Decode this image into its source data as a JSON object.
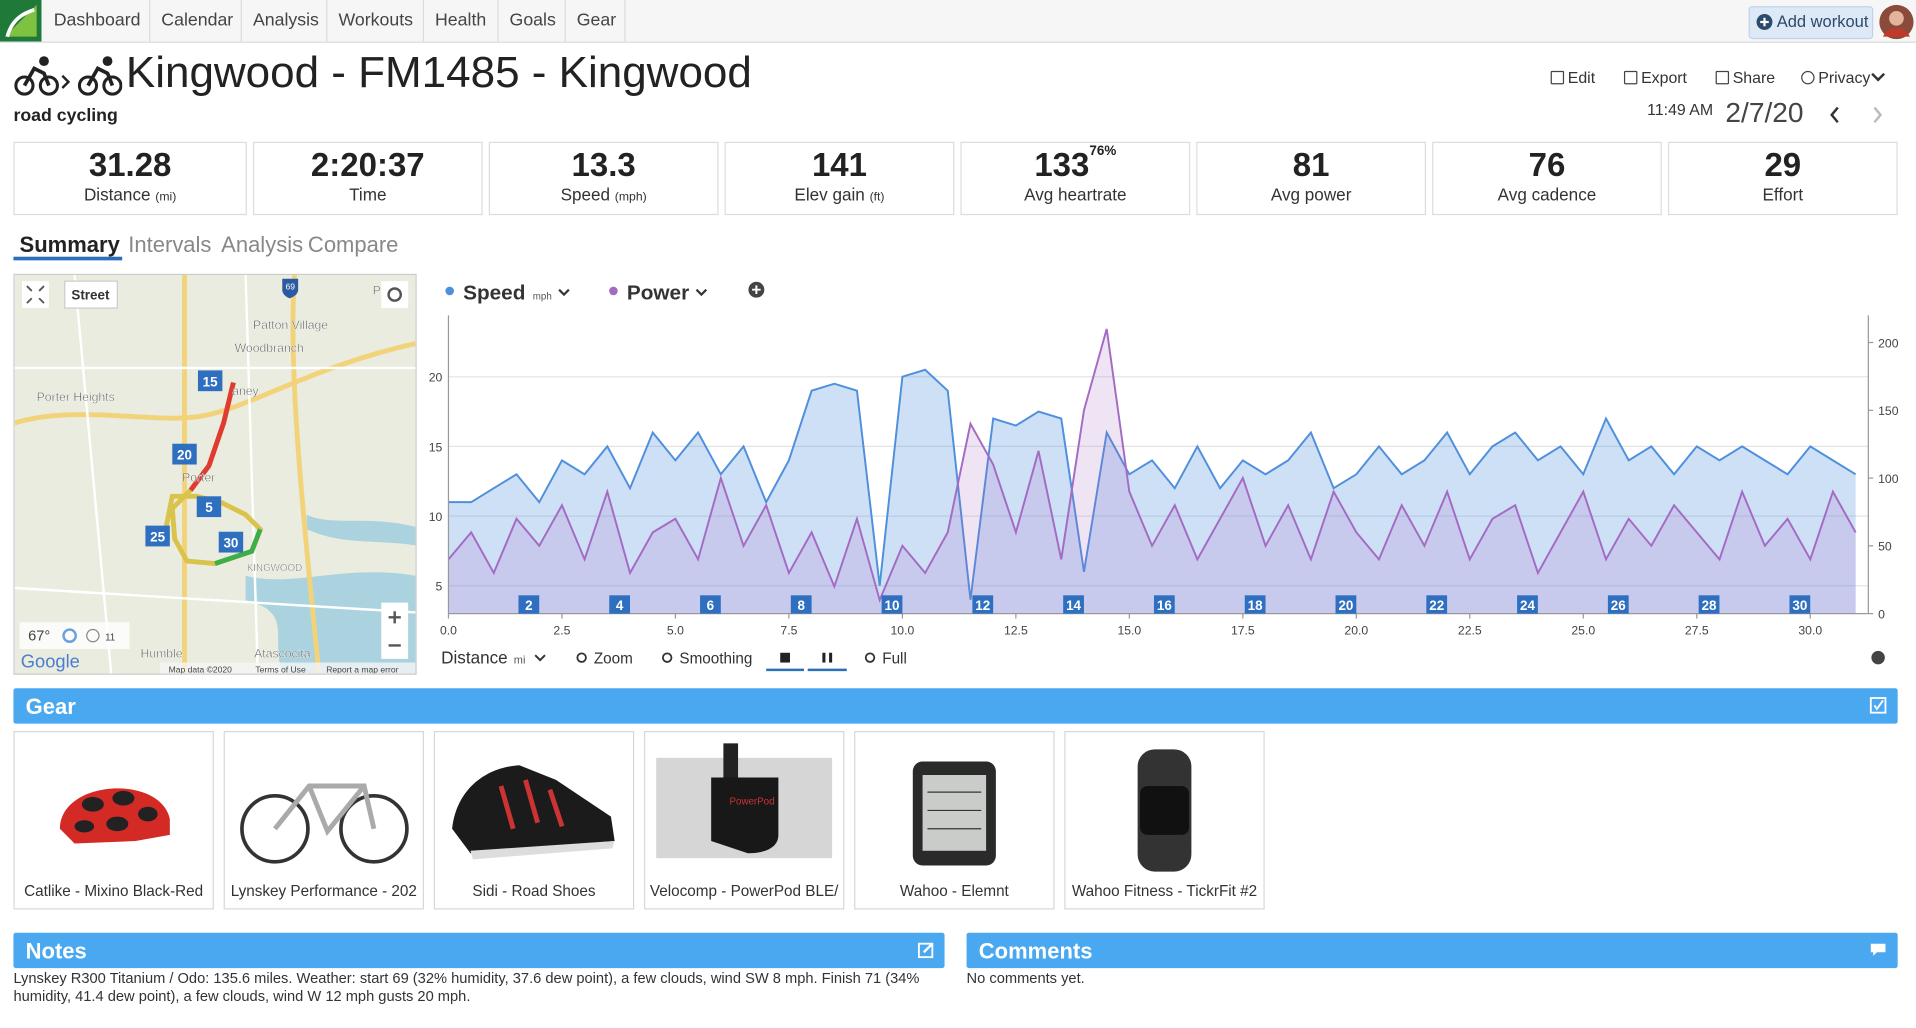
{
  "nav": {
    "items": [
      "Dashboard",
      "Calendar",
      "Analysis",
      "Workouts",
      "Health",
      "Goals",
      "Gear"
    ],
    "add_workout": "Add workout"
  },
  "header": {
    "title": "Kingwood - FM1485 - Kingwood",
    "type": "road cycling",
    "actions": [
      "Edit",
      "Export",
      "Share",
      "Privacy"
    ],
    "time": "11:49 AM",
    "date": "2/7/20"
  },
  "stats": [
    {
      "value": 31.28,
      "label": "Distance",
      "unit": "(mi)"
    },
    {
      "value": "2:20:37",
      "label": "Time"
    },
    {
      "value": 13.3,
      "label": "Speed",
      "unit": "(mph)"
    },
    {
      "value": 141,
      "label": "Elev gain",
      "unit": "(ft)"
    },
    {
      "value": 133,
      "label": "Avg heartrate",
      "extra": "76%"
    },
    {
      "value": 81,
      "label": "Avg power"
    },
    {
      "value": 76,
      "label": "Avg cadence"
    },
    {
      "value": 29,
      "label": "Effort"
    }
  ],
  "tabs": [
    "Summary",
    "Intervals",
    "Analysis",
    "Compare"
  ],
  "map": {
    "street": "Street",
    "shield": "69",
    "labels": [
      "Patton Village",
      "Woodbranch",
      "Porter Heights",
      "Porter",
      "KINGWOOD",
      "Humble",
      "Atascocita",
      "aney",
      "P"
    ],
    "markers": [
      15,
      20,
      5,
      25,
      30
    ],
    "temp": "67°",
    "wind": "11",
    "google": "Google",
    "footer": [
      "Map data ©2020",
      "Terms of Use",
      "Report a map error"
    ]
  },
  "chart_data": {
    "type": "line",
    "x": [
      0,
      0.5,
      1,
      1.5,
      2,
      2.5,
      3,
      3.5,
      4,
      4.5,
      5,
      5.5,
      6,
      6.5,
      7,
      7.5,
      8,
      8.5,
      9,
      9.5,
      10,
      10.5,
      11,
      11.5,
      12,
      12.5,
      13,
      13.5,
      14,
      14.5,
      15,
      15.5,
      16,
      16.5,
      17,
      17.5,
      18,
      18.5,
      19,
      19.5,
      20,
      20.5,
      21,
      21.5,
      22,
      22.5,
      23,
      23.5,
      24,
      24.5,
      25,
      25.5,
      26,
      26.5,
      27,
      27.5,
      28,
      28.5,
      29,
      29.5,
      30,
      30.5,
      31
    ],
    "series": [
      {
        "name": "Speed",
        "unit": "mph",
        "color": "#4f8fdc",
        "values": [
          11,
          11,
          12,
          13,
          11,
          14,
          13,
          15,
          12,
          16,
          14,
          16,
          13,
          15,
          11,
          14,
          19,
          19.5,
          19,
          5,
          20,
          20.5,
          19,
          4,
          17,
          16.5,
          17.5,
          17,
          6,
          16,
          13,
          14,
          12,
          15,
          12,
          14,
          13,
          14,
          16,
          12,
          13,
          15,
          13,
          14,
          16,
          13,
          15,
          16,
          14,
          15,
          13,
          17,
          14,
          15,
          13,
          15,
          14,
          15,
          14,
          13,
          15,
          14,
          13
        ]
      },
      {
        "name": "Power",
        "color": "#a46bc4",
        "axis": "y2",
        "values": [
          40,
          60,
          30,
          70,
          50,
          80,
          40,
          90,
          30,
          60,
          70,
          40,
          100,
          50,
          80,
          30,
          60,
          20,
          70,
          10,
          50,
          30,
          60,
          140,
          110,
          60,
          120,
          40,
          150,
          210,
          90,
          50,
          80,
          40,
          70,
          100,
          50,
          80,
          40,
          90,
          60,
          40,
          80,
          50,
          90,
          40,
          70,
          80,
          30,
          60,
          90,
          40,
          70,
          50,
          80,
          60,
          40,
          90,
          50,
          70,
          40,
          90,
          60
        ]
      }
    ],
    "xlim": [
      0,
      31.28
    ],
    "xticks": [
      {
        "value": 0,
        "label": "0.0"
      },
      2.5,
      {
        "value": 5,
        "label": "5.0"
      },
      7.5,
      {
        "value": 10,
        "label": "10.0"
      },
      12.5,
      {
        "value": 15,
        "label": "15.0"
      },
      17.5,
      {
        "value": 20,
        "label": "20.0"
      },
      22.5,
      {
        "value": 25,
        "label": "25.0"
      },
      27.5,
      {
        "value": 30,
        "label": "30.0"
      }
    ],
    "ylim": [
      3,
      24.4
    ],
    "yticks": [
      5,
      10,
      15,
      20
    ],
    "y2lim": [
      0,
      220
    ],
    "y2ticks": [
      0,
      50,
      100,
      150,
      200
    ],
    "grid": true,
    "markers": [
      2,
      4,
      6,
      8,
      10,
      12,
      14,
      16,
      18,
      20,
      22,
      24,
      26,
      28,
      30
    ],
    "xlabel": "Distance",
    "xunit": "mi"
  },
  "chart_controls": [
    "Zoom",
    "Smoothing",
    "Full"
  ],
  "gear": {
    "title": "Gear",
    "items": [
      "Catlike - Mixino Black-Red",
      "Lynskey Performance - 202",
      "Sidi - Road Shoes",
      "Velocomp - PowerPod BLE/",
      "Wahoo - Elemnt",
      "Wahoo Fitness - TickrFit #2"
    ]
  },
  "notes": {
    "title": "Notes",
    "text": "Lynskey R300 Titanium / Odo: 135.6 miles. Weather: start 69 (32% humidity, 37.6 dew point), a few clouds, wind SW 8 mph. Finish 71 (34% humidity, 41.4 dew point), a few clouds, wind W 12 mph gusts 20 mph."
  },
  "comments": {
    "title": "Comments",
    "text": "No comments yet."
  }
}
